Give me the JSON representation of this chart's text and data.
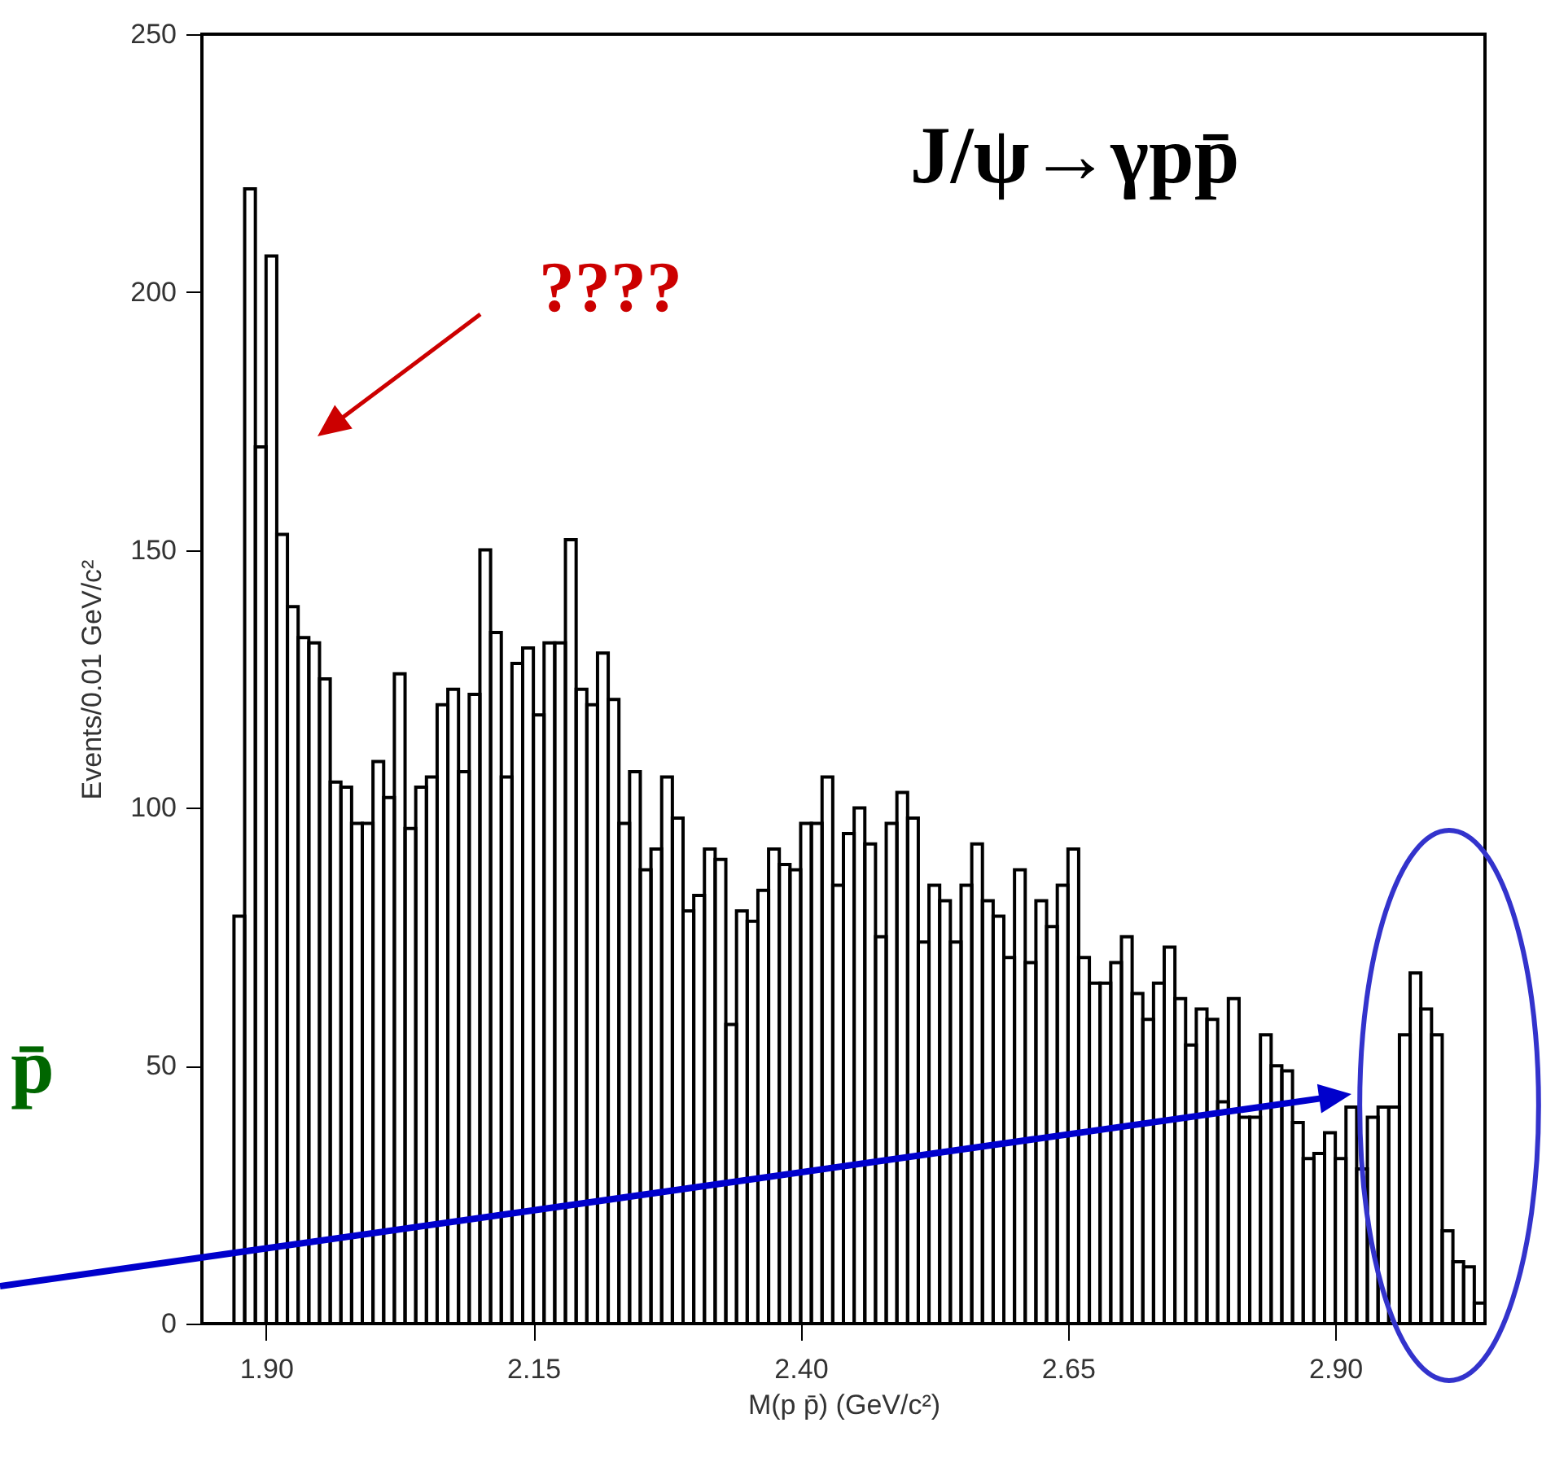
{
  "chart_data": {
    "type": "histogram",
    "title": "J/ψ→γpp̄",
    "xlabel": "M(p p̄) (GeV/c²)",
    "ylabel": "Events/0.01 GeV/c²",
    "color": "#000000",
    "bins": [
      1.87,
      1.88,
      1.89,
      1.9,
      1.91,
      1.92,
      1.93,
      1.94,
      1.95,
      1.96,
      1.97,
      1.98,
      1.99,
      2.0,
      2.01,
      2.02,
      2.03,
      2.04,
      2.05,
      2.06,
      2.07,
      2.08,
      2.09,
      2.1,
      2.11,
      2.12,
      2.13,
      2.14,
      2.15,
      2.16,
      2.17,
      2.18,
      2.19,
      2.2,
      2.21,
      2.22,
      2.23,
      2.24,
      2.25,
      2.26,
      2.27,
      2.28,
      2.29,
      2.3,
      2.31,
      2.32,
      2.33,
      2.34,
      2.35,
      2.36,
      2.37,
      2.38,
      2.39,
      2.4,
      2.41,
      2.42,
      2.43,
      2.44,
      2.45,
      2.46,
      2.47,
      2.48,
      2.49,
      2.5,
      2.51,
      2.52,
      2.53,
      2.54,
      2.55,
      2.56,
      2.57,
      2.58,
      2.59,
      2.6,
      2.61,
      2.62,
      2.63,
      2.64,
      2.65,
      2.66,
      2.67,
      2.68,
      2.69,
      2.7,
      2.71,
      2.72,
      2.73,
      2.74,
      2.75,
      2.76,
      2.77,
      2.78,
      2.79,
      2.8,
      2.81,
      2.82,
      2.83,
      2.84,
      2.85,
      2.86,
      2.87,
      2.88,
      2.89,
      2.9,
      2.91,
      2.92,
      2.93,
      2.94,
      2.95,
      2.96,
      2.97,
      2.98,
      2.99,
      3.0,
      3.01,
      3.02,
      3.03,
      3.04
    ],
    "values": [
      79,
      220,
      170,
      207,
      153,
      139,
      133,
      132,
      125,
      105,
      104,
      97,
      97,
      109,
      102,
      126,
      96,
      104,
      106,
      120,
      123,
      107,
      122,
      150,
      134,
      106,
      128,
      131,
      118,
      132,
      132,
      152,
      123,
      120,
      130,
      121,
      97,
      107,
      88,
      92,
      106,
      98,
      80,
      83,
      92,
      90,
      58,
      80,
      78,
      84,
      92,
      89,
      88,
      97,
      97,
      106,
      85,
      95,
      100,
      93,
      75,
      97,
      103,
      98,
      74,
      85,
      82,
      74,
      85,
      93,
      82,
      79,
      71,
      88,
      70,
      82,
      77,
      85,
      92,
      71,
      66,
      66,
      70,
      75,
      64,
      59,
      66,
      73,
      63,
      54,
      61,
      59,
      43,
      63,
      40,
      40,
      56,
      50,
      49,
      39,
      32,
      33,
      37,
      32,
      42,
      30,
      40,
      42,
      42,
      56,
      68,
      61,
      56,
      18,
      12,
      11,
      4
    ],
    "xlim": [
      1.84,
      3.04
    ],
    "ylim": [
      0,
      250
    ],
    "xticks": [
      {
        "value": 1.9,
        "label": "1.90"
      },
      {
        "value": 2.15,
        "label": "2.15"
      },
      {
        "value": 2.4,
        "label": "2.40"
      },
      {
        "value": 2.65,
        "label": "2.65"
      },
      {
        "value": 2.9,
        "label": "2.90"
      }
    ],
    "yticks": [
      0,
      50,
      100,
      150,
      200,
      250
    ],
    "annotations": [
      "????",
      "p̄"
    ]
  }
}
